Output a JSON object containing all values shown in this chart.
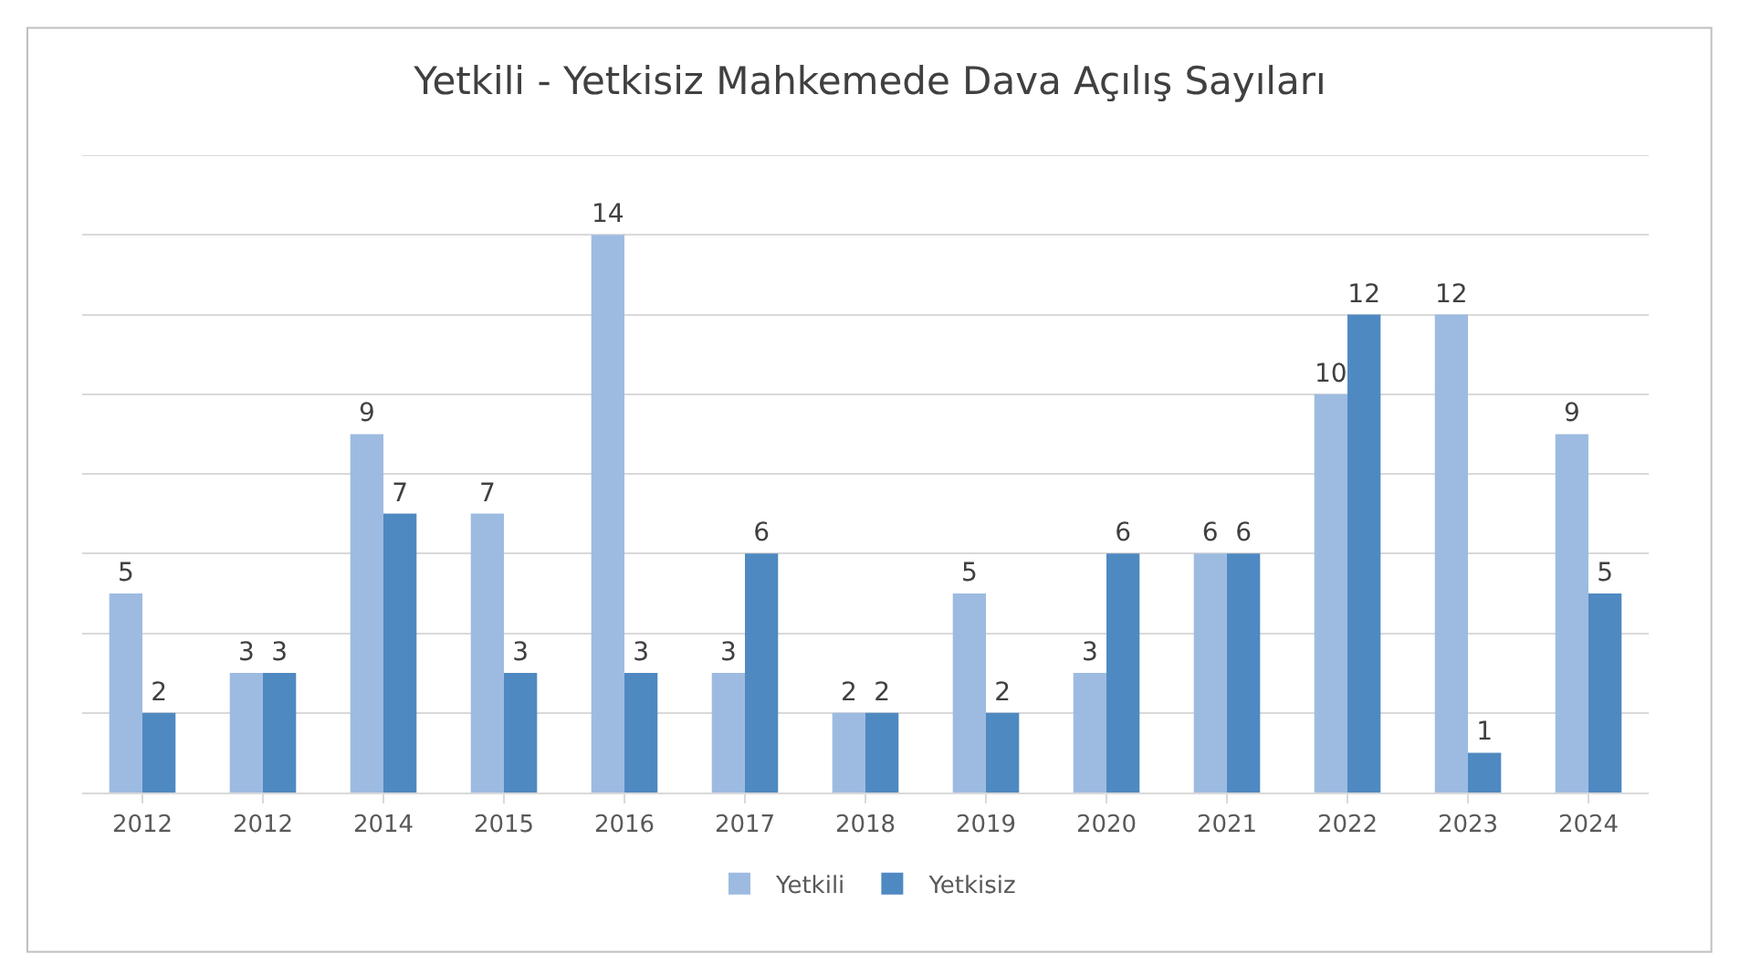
{
  "chart_data": {
    "type": "bar",
    "title": "Yetkili - Yetkisiz Mahkemede Dava Açılış Sayıları",
    "categories": [
      "2012",
      "2012",
      "2014",
      "2015",
      "2016",
      "2017",
      "2018",
      "2019",
      "2020",
      "2021",
      "2022",
      "2023",
      "2024"
    ],
    "series": [
      {
        "name": "Yetkili",
        "color": "#9dbbe1",
        "values": [
          5,
          3,
          9,
          7,
          14,
          3,
          2,
          5,
          3,
          6,
          10,
          12,
          9
        ]
      },
      {
        "name": "Yetkisiz",
        "color": "#4f89c1",
        "values": [
          2,
          3,
          7,
          3,
          3,
          6,
          2,
          2,
          6,
          6,
          12,
          1,
          5
        ]
      }
    ],
    "ylim": [
      0,
      16
    ],
    "yticks": [
      {
        "value": 0,
        "label": null
      },
      {
        "value": 2,
        "label": null
      },
      {
        "value": 4,
        "label": null
      },
      {
        "value": 6,
        "label": null
      },
      {
        "value": 8,
        "label": null
      },
      {
        "value": 10,
        "label": null
      },
      {
        "value": 12,
        "label": null
      },
      {
        "value": 14,
        "label": null
      },
      {
        "value": 16,
        "label": null
      }
    ],
    "tick_labels": "x",
    "grid": "y",
    "legend": "bottom",
    "data_labels": true
  }
}
